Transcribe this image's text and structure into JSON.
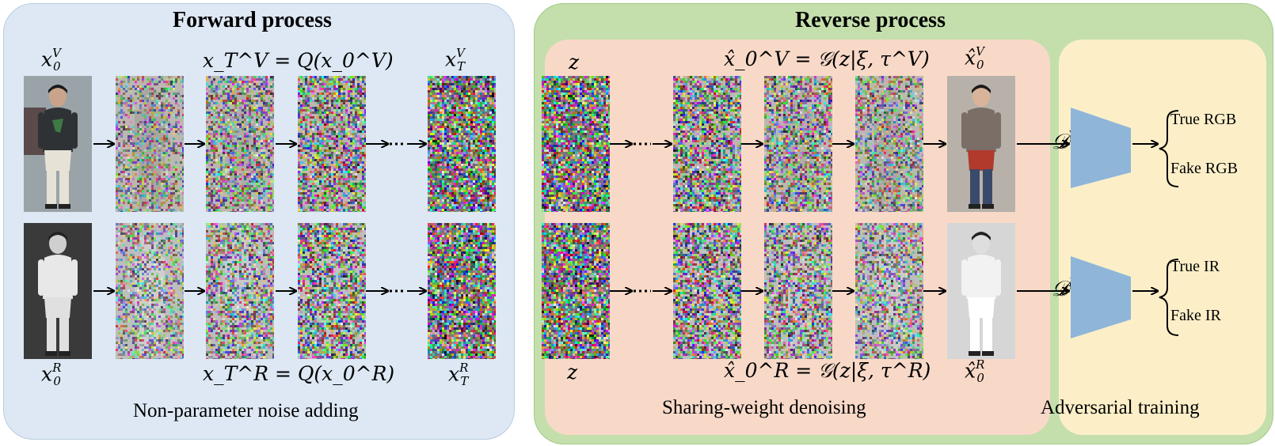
{
  "forward": {
    "title": "Forward process",
    "caption": "Non-parameter noise adding",
    "label_x0v_base": "x",
    "label_x0v_sub": "0",
    "label_x0v_sup": "V",
    "label_x0r_base": "x",
    "label_x0r_sub": "0",
    "label_x0r_sup": "R",
    "eq_top": "x_T^V = Q(x_0^V)",
    "eq_bottom": "x_T^R = Q(x_0^R)",
    "label_xtv_base": "x",
    "label_xtv_sub": "T",
    "label_xtv_sup": "V",
    "label_xtr_base": "x",
    "label_xtr_sub": "T",
    "label_xtr_sup": "R"
  },
  "reverse": {
    "title": "Reverse process",
    "denoise_caption": "Sharing-weight denoising",
    "adv_caption": "Adversarial training",
    "z_top": "z",
    "z_bottom": "z",
    "eq_top": "x̂_0^V = 𝒢(z|ξ, τ^V)",
    "eq_bottom": "x̂_0^R = 𝒢(z|ξ, τ^R)",
    "xhat_v_base": "x̂",
    "xhat_v_sub": "0",
    "xhat_v_sup": "V",
    "xhat_r_base": "x̂",
    "xhat_r_sub": "0",
    "xhat_r_sup": "R"
  },
  "adversarial": {
    "disc_v_base": "𝒟",
    "disc_v_sup": "V",
    "disc_r_base": "𝒟",
    "disc_r_sup": "R",
    "true_rgb": "True RGB",
    "fake_rgb": "Fake RGB",
    "true_ir": "True IR",
    "fake_ir": "Fake IR"
  },
  "colors": {
    "forward_bg": "#dde8f4",
    "reverse_bg": "#c4dfac",
    "denoise_bg": "#f8d9c8",
    "adv_bg": "#fcefc8",
    "discriminator": "#8fb6d9"
  }
}
